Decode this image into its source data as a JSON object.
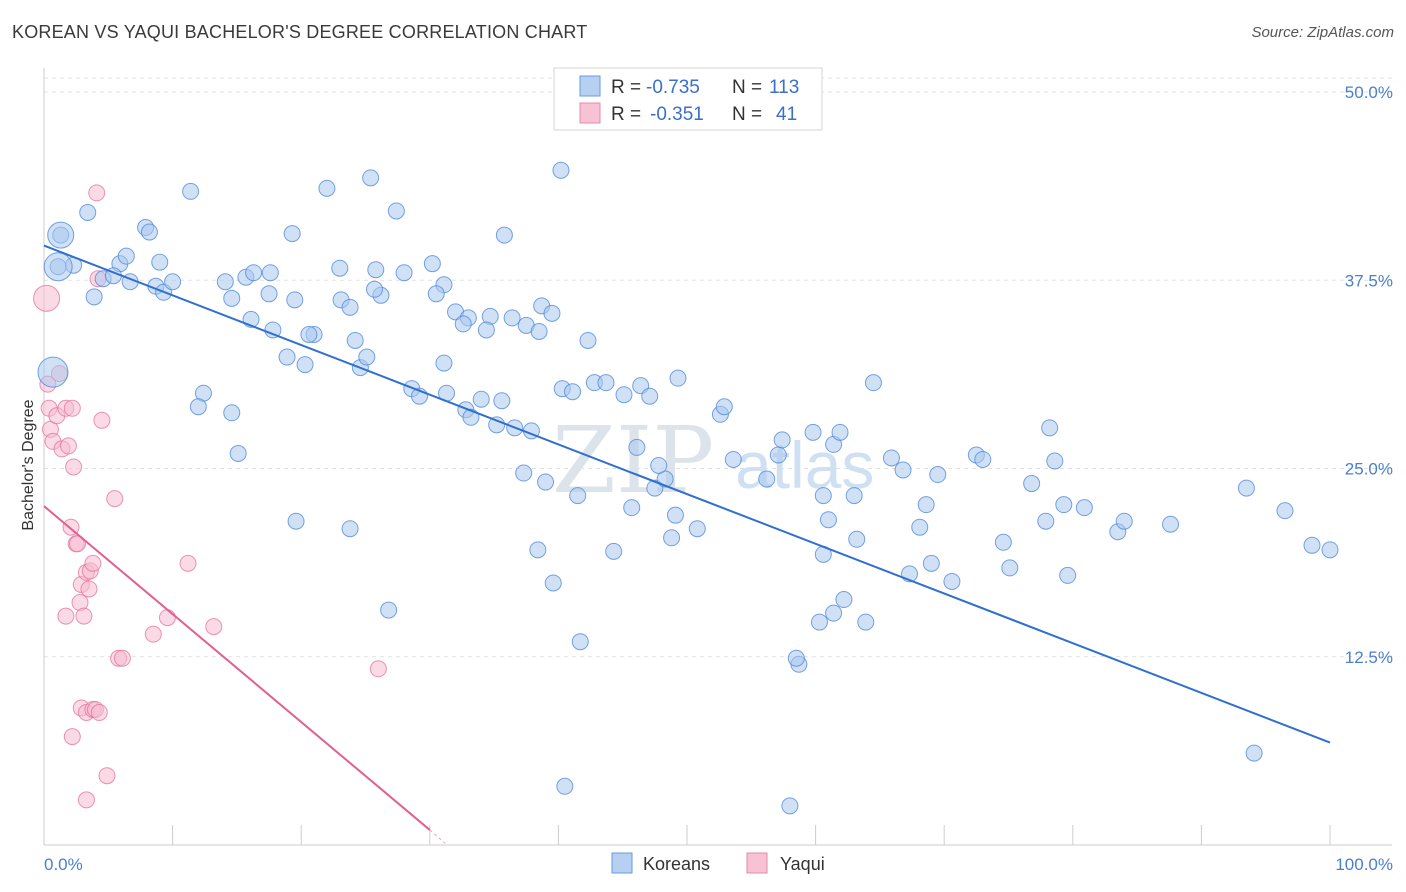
{
  "header": {
    "title": "KOREAN VS YAQUI BACHELOR'S DEGREE CORRELATION CHART",
    "source": "Source: ZipAtlas.com"
  },
  "legend": {
    "rows": [
      {
        "r_label": "R = ",
        "r_value": "-0.735",
        "n_label": "N = ",
        "n_value": "113",
        "color": "#8fb6e8"
      },
      {
        "r_label": "R = ",
        "r_value": "-0.351",
        "n_label": "N = ",
        "n_value": "41",
        "color": "#f2a7be"
      }
    ]
  },
  "bottom_legend": {
    "items": [
      {
        "label": "Koreans",
        "color": "#8fb6e8"
      },
      {
        "label": "Yaqui",
        "color": "#f2a7be"
      }
    ]
  },
  "watermark": {
    "zip": "ZIP",
    "atlas": "atlas"
  },
  "chart_data": {
    "type": "scatter",
    "ylabel": "Bachelor's Degree",
    "xlim": [
      0,
      100
    ],
    "ylim": [
      0,
      50
    ],
    "x_tick_labels": [
      "0.0%",
      "100.0%"
    ],
    "y_ticks": [
      {
        "value": 12.5,
        "label": "12.5%"
      },
      {
        "value": 25.0,
        "label": "25.0%"
      },
      {
        "value": 37.5,
        "label": "37.5%"
      },
      {
        "value": 50.0,
        "label": "50.0%"
      }
    ],
    "grid": true,
    "colors": {
      "koreans": "#4a86d8",
      "koreans_fill": "#a9c8ef",
      "yaqui": "#e46a95",
      "yaqui_fill": "#f6bcd0"
    },
    "series": [
      {
        "name": "Koreans",
        "trend": {
          "x": [
            0,
            100
          ],
          "y": [
            39.8,
            6.8
          ]
        },
        "points": [
          [
            1.3,
            40.5
          ],
          [
            1.1,
            38.4
          ],
          [
            3.4,
            42.0
          ],
          [
            5.9,
            38.6
          ],
          [
            6.4,
            39.1
          ],
          [
            7.9,
            41.0
          ],
          [
            8.2,
            40.7
          ],
          [
            9.0,
            38.7
          ],
          [
            2.3,
            38.5
          ],
          [
            4.6,
            37.6
          ],
          [
            5.4,
            37.8
          ],
          [
            6.7,
            37.4
          ],
          [
            8.7,
            37.1
          ],
          [
            9.3,
            36.7
          ],
          [
            3.9,
            36.4
          ],
          [
            10.0,
            37.4
          ],
          [
            11.4,
            43.4
          ],
          [
            14.1,
            37.4
          ],
          [
            14.6,
            36.3
          ],
          [
            15.7,
            37.7
          ],
          [
            17.5,
            36.6
          ],
          [
            16.3,
            38.0
          ],
          [
            17.6,
            38.0
          ],
          [
            19.3,
            40.6
          ],
          [
            19.5,
            36.2
          ],
          [
            16.1,
            34.9
          ],
          [
            17.8,
            34.2
          ],
          [
            21.0,
            33.9
          ],
          [
            23.1,
            36.2
          ],
          [
            23.0,
            38.3
          ],
          [
            25.8,
            38.2
          ],
          [
            26.2,
            36.5
          ],
          [
            23.8,
            35.7
          ],
          [
            25.7,
            36.9
          ],
          [
            20.6,
            33.9
          ],
          [
            20.3,
            31.9
          ],
          [
            24.6,
            31.7
          ],
          [
            25.1,
            32.4
          ],
          [
            24.2,
            33.5
          ],
          [
            18.9,
            32.4
          ],
          [
            22.0,
            43.6
          ],
          [
            25.4,
            44.3
          ],
          [
            28.0,
            38.0
          ],
          [
            30.2,
            38.6
          ],
          [
            31.1,
            37.2
          ],
          [
            30.5,
            36.6
          ],
          [
            32.0,
            35.4
          ],
          [
            33.0,
            35.0
          ],
          [
            34.7,
            35.1
          ],
          [
            36.4,
            35.0
          ],
          [
            32.6,
            34.6
          ],
          [
            34.4,
            34.2
          ],
          [
            37.5,
            34.5
          ],
          [
            38.7,
            35.8
          ],
          [
            39.5,
            35.3
          ],
          [
            38.5,
            34.1
          ],
          [
            42.3,
            33.5
          ],
          [
            31.1,
            32.0
          ],
          [
            28.6,
            30.3
          ],
          [
            29.2,
            29.8
          ],
          [
            31.3,
            30.0
          ],
          [
            34.0,
            29.6
          ],
          [
            32.8,
            28.9
          ],
          [
            35.6,
            29.5
          ],
          [
            33.2,
            28.4
          ],
          [
            35.2,
            27.9
          ],
          [
            36.6,
            27.7
          ],
          [
            37.9,
            27.5
          ],
          [
            40.3,
            30.3
          ],
          [
            42.8,
            30.7
          ],
          [
            41.1,
            30.1
          ],
          [
            43.7,
            30.7
          ],
          [
            45.1,
            29.9
          ],
          [
            46.4,
            30.5
          ],
          [
            47.1,
            29.8
          ],
          [
            27.4,
            42.1
          ],
          [
            35.8,
            40.5
          ],
          [
            40.2,
            44.8
          ],
          [
            37.3,
            24.7
          ],
          [
            39.0,
            24.1
          ],
          [
            41.5,
            23.2
          ],
          [
            45.7,
            22.4
          ],
          [
            47.5,
            23.7
          ],
          [
            48.8,
            20.4
          ],
          [
            48.3,
            24.3
          ],
          [
            47.8,
            25.2
          ],
          [
            46.1,
            26.4
          ],
          [
            44.3,
            19.5
          ],
          [
            39.6,
            17.4
          ],
          [
            41.7,
            13.5
          ],
          [
            49.3,
            31.0
          ],
          [
            50.8,
            21.0
          ],
          [
            52.6,
            28.6
          ],
          [
            52.9,
            29.1
          ],
          [
            53.6,
            25.6
          ],
          [
            56.2,
            24.3
          ],
          [
            57.1,
            25.9
          ],
          [
            57.4,
            26.9
          ],
          [
            59.8,
            27.4
          ],
          [
            60.6,
            23.2
          ],
          [
            61.0,
            21.6
          ],
          [
            61.4,
            26.6
          ],
          [
            61.9,
            27.4
          ],
          [
            63.0,
            23.2
          ],
          [
            63.2,
            20.3
          ],
          [
            64.5,
            30.7
          ],
          [
            65.9,
            25.7
          ],
          [
            66.8,
            24.9
          ],
          [
            68.1,
            21.1
          ],
          [
            68.6,
            22.6
          ],
          [
            69.0,
            18.7
          ],
          [
            69.5,
            24.6
          ],
          [
            72.5,
            25.9
          ],
          [
            73.0,
            25.6
          ],
          [
            74.6,
            20.1
          ],
          [
            75.1,
            18.4
          ],
          [
            76.8,
            24.0
          ],
          [
            77.9,
            21.5
          ],
          [
            78.2,
            27.7
          ],
          [
            78.6,
            25.5
          ],
          [
            79.3,
            22.6
          ],
          [
            79.6,
            17.9
          ],
          [
            80.9,
            22.4
          ],
          [
            83.5,
            20.8
          ],
          [
            84.0,
            21.5
          ],
          [
            87.6,
            21.3
          ],
          [
            93.5,
            23.7
          ],
          [
            96.5,
            22.2
          ],
          [
            98.6,
            19.9
          ],
          [
            100.0,
            19.6
          ],
          [
            49.1,
            21.9
          ],
          [
            38.4,
            19.6
          ],
          [
            60.6,
            19.3
          ],
          [
            67.3,
            18.0
          ],
          [
            70.6,
            17.5
          ],
          [
            58.7,
            12.0
          ],
          [
            58.5,
            12.4
          ],
          [
            60.3,
            14.8
          ],
          [
            61.4,
            15.4
          ],
          [
            62.2,
            16.3
          ],
          [
            63.9,
            14.8
          ],
          [
            94.1,
            6.1
          ],
          [
            40.5,
            3.9
          ],
          [
            58.0,
            2.6
          ],
          [
            19.6,
            21.5
          ],
          [
            12.4,
            30.0
          ],
          [
            14.6,
            28.7
          ],
          [
            12.0,
            29.1
          ],
          [
            15.1,
            26.0
          ],
          [
            23.8,
            21.0
          ],
          [
            26.8,
            15.6
          ]
        ],
        "point_sizes": {
          "default": 8,
          "large": [
            [
              1.3,
              40.5,
              13
            ],
            [
              1.1,
              38.4,
              14
            ],
            [
              0.7,
              31.4,
              15
            ]
          ]
        }
      },
      {
        "name": "Yaqui",
        "trend": {
          "x": [
            0,
            30
          ],
          "y": [
            22.5,
            1.0
          ]
        },
        "points": [
          [
            0.2,
            36.3
          ],
          [
            0.3,
            30.6
          ],
          [
            0.4,
            29.0
          ],
          [
            0.5,
            27.6
          ],
          [
            0.7,
            26.8
          ],
          [
            1.0,
            28.5
          ],
          [
            1.2,
            31.3
          ],
          [
            1.4,
            26.3
          ],
          [
            1.7,
            29.0
          ],
          [
            1.9,
            26.5
          ],
          [
            2.2,
            29.0
          ],
          [
            2.3,
            25.1
          ],
          [
            2.5,
            20.0
          ],
          [
            2.6,
            20.0
          ],
          [
            2.8,
            16.1
          ],
          [
            2.9,
            17.3
          ],
          [
            3.1,
            15.2
          ],
          [
            3.3,
            18.1
          ],
          [
            3.5,
            17.0
          ],
          [
            3.6,
            18.2
          ],
          [
            3.8,
            18.7
          ],
          [
            4.1,
            43.3
          ],
          [
            4.2,
            37.6
          ],
          [
            4.5,
            28.2
          ],
          [
            5.5,
            23.0
          ],
          [
            5.8,
            12.4
          ],
          [
            6.1,
            12.4
          ],
          [
            8.5,
            14.0
          ],
          [
            9.6,
            15.1
          ],
          [
            11.2,
            18.7
          ],
          [
            13.2,
            14.5
          ],
          [
            2.1,
            21.1
          ],
          [
            1.7,
            15.2
          ],
          [
            2.9,
            9.1
          ],
          [
            3.3,
            8.8
          ],
          [
            3.8,
            9.0
          ],
          [
            4.0,
            9.0
          ],
          [
            4.3,
            8.8
          ],
          [
            2.2,
            7.2
          ],
          [
            4.9,
            4.6
          ],
          [
            3.3,
            3.0
          ],
          [
            26.0,
            11.7
          ]
        ]
      }
    ]
  }
}
